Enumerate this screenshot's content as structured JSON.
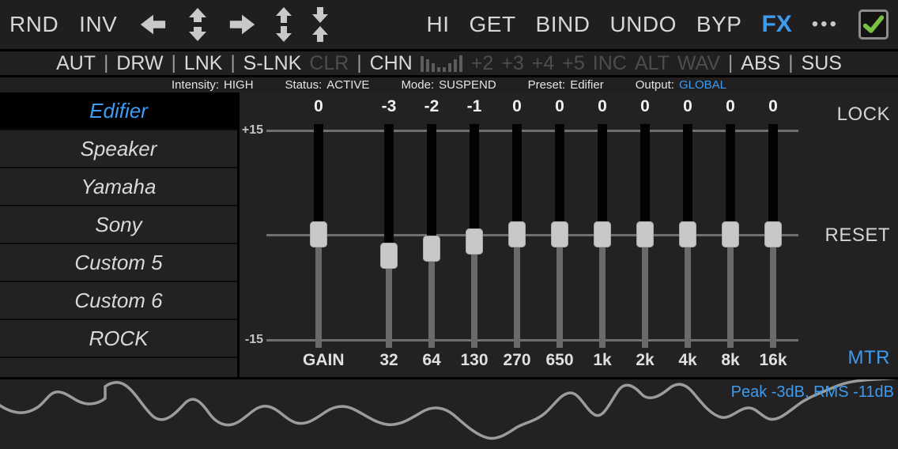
{
  "colors": {
    "accent": "#3b9cf2",
    "check_green": "#7ac142",
    "disabled_text": "#4d4d4d"
  },
  "topbar": {
    "rnd": "RND",
    "inv": "INV",
    "icons": [
      "arrow-left-icon",
      "expand-vertical-icon",
      "arrow-right-icon",
      "move-vertical-icon",
      "collapse-vertical-icon"
    ],
    "right_items": [
      "HI",
      "GET",
      "BIND",
      "UNDO",
      "BYP"
    ],
    "fx": "FX",
    "more": "•••"
  },
  "toolbar": {
    "items": [
      {
        "t": "AUT",
        "on": true
      },
      {
        "t": "|",
        "sep": true
      },
      {
        "t": "DRW",
        "on": true
      },
      {
        "t": "|",
        "sep": true
      },
      {
        "t": "LNK",
        "on": true
      },
      {
        "t": "|",
        "sep": true
      },
      {
        "t": "S-LNK",
        "on": true
      },
      {
        "t": "CLR",
        "on": false
      },
      {
        "t": "|",
        "sep": true
      },
      {
        "t": "CHN",
        "on": true
      },
      {
        "icon": "level-bars"
      },
      {
        "t": "+2",
        "on": false
      },
      {
        "t": "+3",
        "on": false
      },
      {
        "t": "+4",
        "on": false
      },
      {
        "t": "+5",
        "on": false
      },
      {
        "t": "INC",
        "on": false
      },
      {
        "t": "ALT",
        "on": false
      },
      {
        "t": "WAV",
        "on": false
      },
      {
        "t": "|",
        "sep": true
      },
      {
        "t": "ABS",
        "on": true
      },
      {
        "t": "|",
        "sep": true
      },
      {
        "t": "SUS",
        "on": true
      }
    ]
  },
  "statusbar": {
    "groups": [
      {
        "label": "Intensity:",
        "value": "HIGH"
      },
      {
        "label": "Status:",
        "value": "ACTIVE"
      },
      {
        "label": "Mode:",
        "value": "SUSPEND"
      },
      {
        "label": "Preset:",
        "value": "Edifier"
      },
      {
        "label": "Output:",
        "value": "GLOBAL",
        "value_accent": true
      }
    ]
  },
  "presets": {
    "items": [
      {
        "label": "Edifier",
        "selected": true
      },
      {
        "label": "Speaker",
        "selected": false
      },
      {
        "label": "Yamaha",
        "selected": false
      },
      {
        "label": "Sony",
        "selected": false
      },
      {
        "label": "Custom 5",
        "selected": false
      },
      {
        "label": "Custom 6",
        "selected": false
      },
      {
        "label": "ROCK",
        "selected": false
      },
      {
        "label": "",
        "selected": false
      }
    ]
  },
  "equalizer": {
    "scale_max_label": "+15",
    "scale_min_label": "-15",
    "db_range": 15,
    "bands": [
      {
        "label": "GAIN",
        "value": 0,
        "display": "0"
      },
      {
        "label": "32",
        "value": -3,
        "display": "-3"
      },
      {
        "label": "64",
        "value": -2,
        "display": "-2"
      },
      {
        "label": "130",
        "value": -1,
        "display": "-1"
      },
      {
        "label": "270",
        "value": 0,
        "display": "0"
      },
      {
        "label": "650",
        "value": 0,
        "display": "0"
      },
      {
        "label": "1k",
        "value": 0,
        "display": "0"
      },
      {
        "label": "2k",
        "value": 0,
        "display": "0"
      },
      {
        "label": "4k",
        "value": 0,
        "display": "0"
      },
      {
        "label": "8k",
        "value": 0,
        "display": "0"
      },
      {
        "label": "16k",
        "value": 0,
        "display": "0"
      }
    ],
    "lock_label": "LOCK",
    "reset_label": "RESET",
    "meter_label": "MTR"
  },
  "meter": {
    "readout": "Peak -3dB, RMS -11dB"
  }
}
